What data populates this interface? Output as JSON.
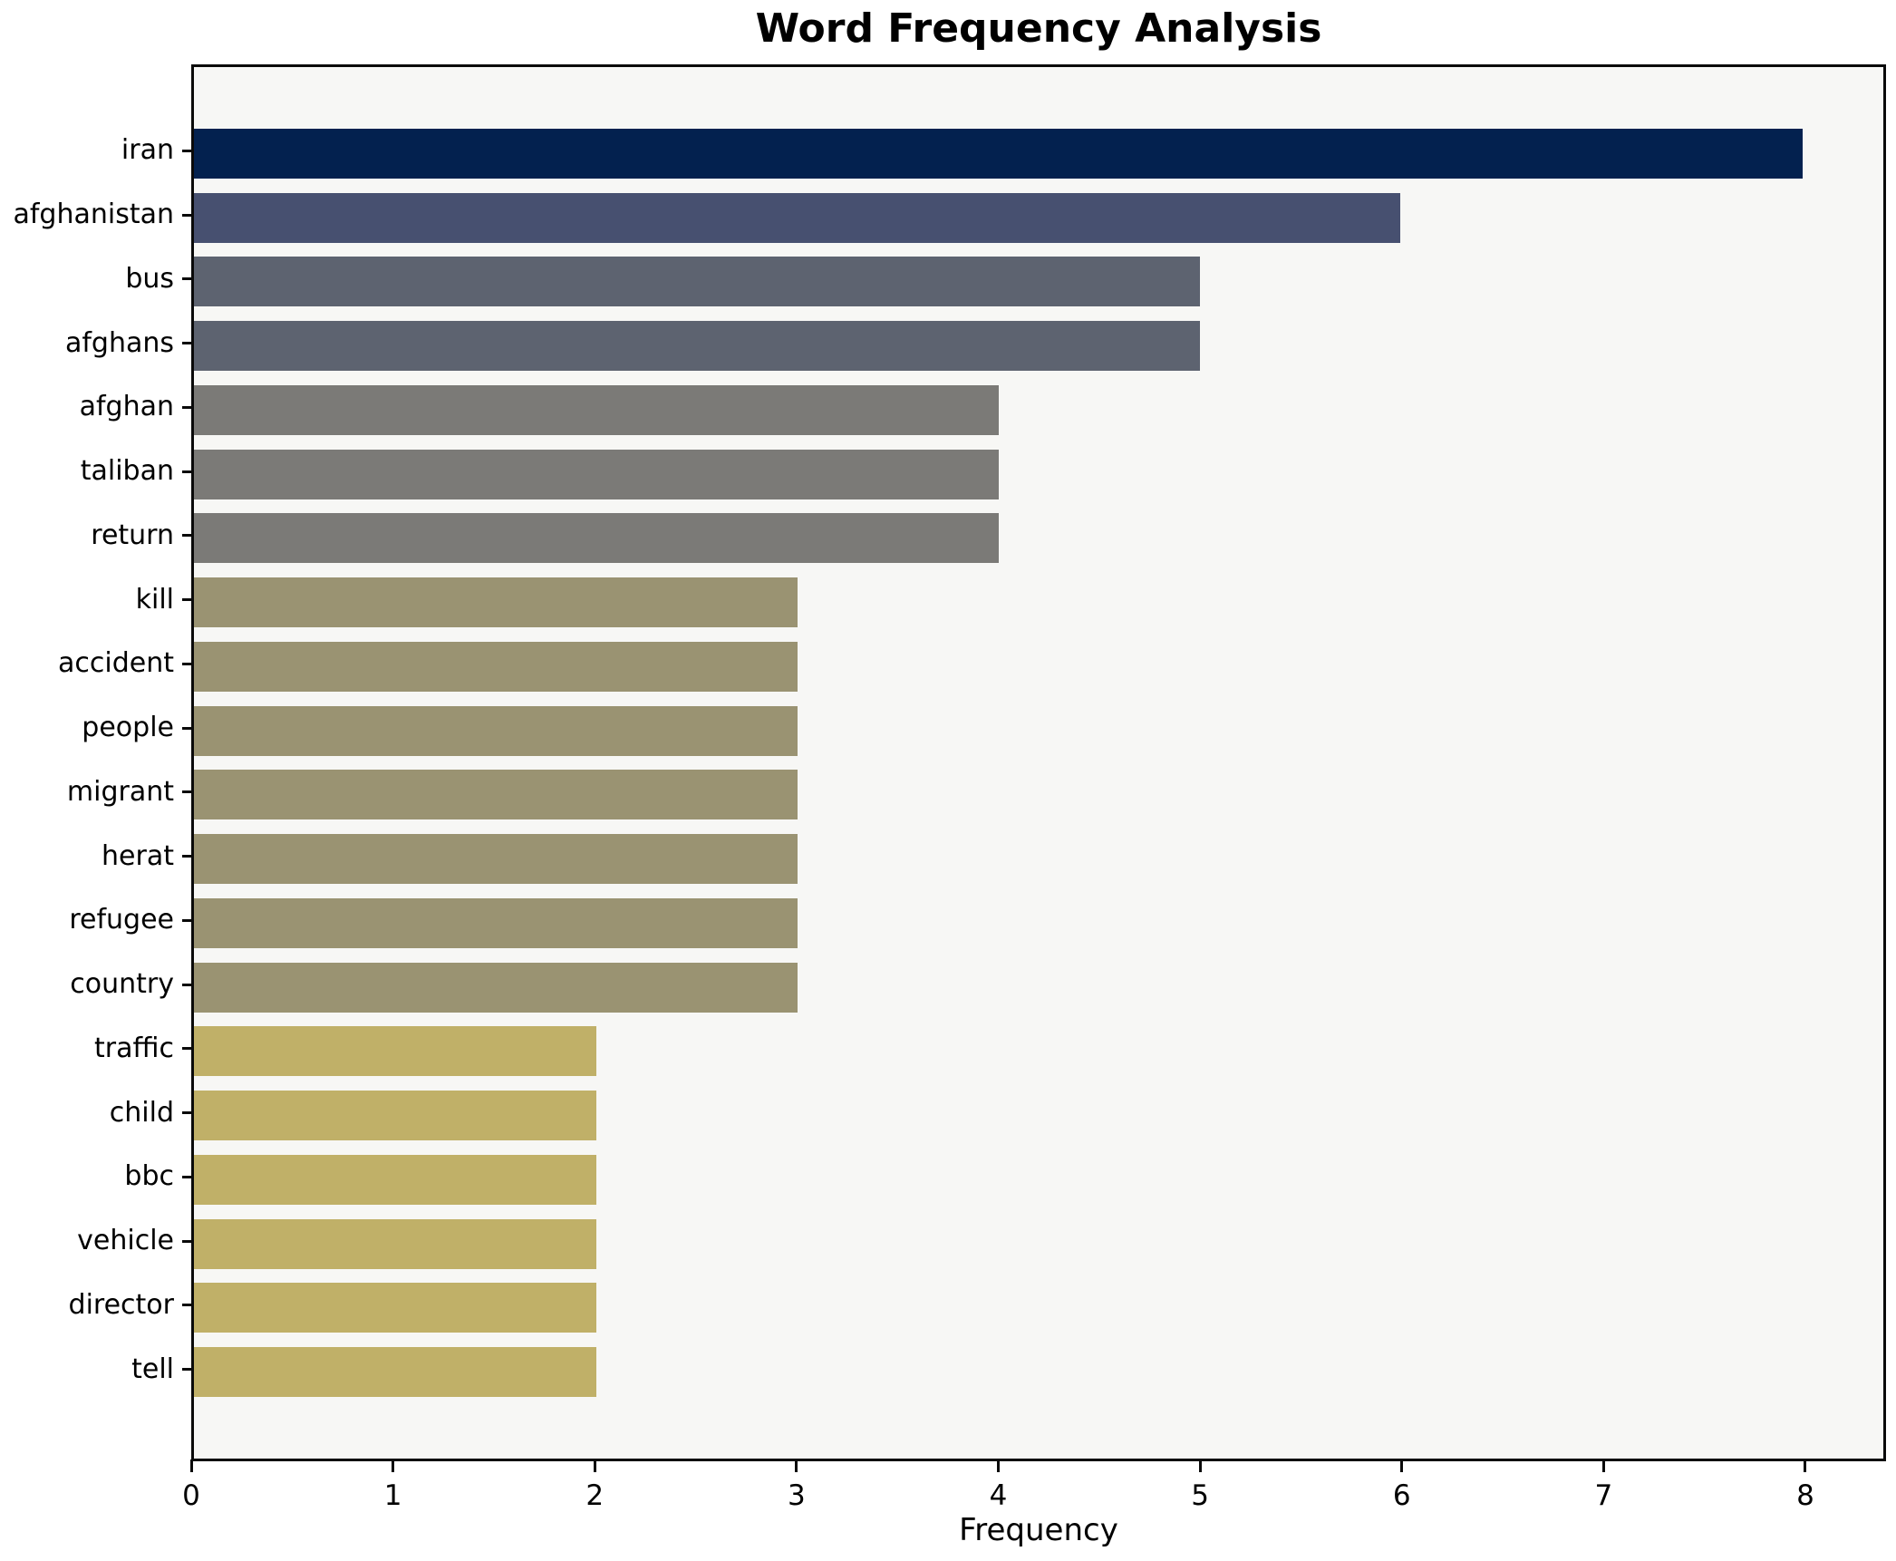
{
  "chart_data": {
    "type": "bar",
    "orientation": "horizontal",
    "title": "Word Frequency Analysis",
    "xlabel": "Frequency",
    "ylabel": "",
    "categories": [
      "iran",
      "afghanistan",
      "bus",
      "afghans",
      "afghan",
      "taliban",
      "return",
      "kill",
      "accident",
      "people",
      "migrant",
      "herat",
      "refugee",
      "country",
      "traffic",
      "child",
      "bbc",
      "vehicle",
      "director",
      "tell"
    ],
    "values": [
      8,
      6,
      5,
      5,
      4,
      4,
      4,
      3,
      3,
      3,
      3,
      3,
      3,
      3,
      2,
      2,
      2,
      2,
      2,
      2
    ],
    "xticks": [
      0,
      1,
      2,
      3,
      4,
      5,
      6,
      7,
      8
    ],
    "xlim": [
      0,
      8.4
    ],
    "grid": false,
    "legend": null,
    "colormap": "cividis",
    "value_colors": {
      "8": "#03214f",
      "6": "#475070",
      "5": "#5d6370",
      "4": "#7b7a77",
      "3": "#9a9372",
      "2": "#c0b068"
    },
    "plot_background": "#f7f7f5",
    "figure_background": "#ffffff",
    "spine_color": "#0a0a0a"
  }
}
